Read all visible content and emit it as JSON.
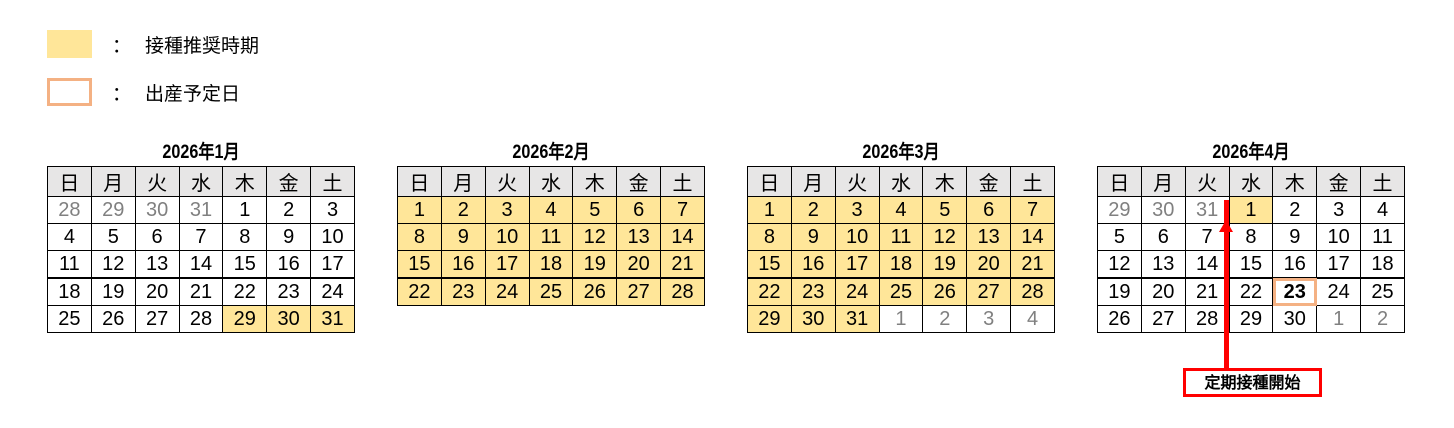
{
  "colors": {
    "recommended": "#ffe699",
    "due_date_border": "#f4b183",
    "annotation": "#ff0000"
  },
  "legend": [
    {
      "separator": "：",
      "label": "接種推奨時期"
    },
    {
      "separator": "：",
      "label": "出産予定日"
    }
  ],
  "weekdays": [
    "日",
    "月",
    "火",
    "水",
    "木",
    "金",
    "土"
  ],
  "months": [
    {
      "title": "2026年1月",
      "days": [
        28,
        29,
        30,
        31,
        1,
        2,
        3,
        4,
        5,
        6,
        7,
        8,
        9,
        10,
        11,
        12,
        13,
        14,
        15,
        16,
        17,
        18,
        19,
        20,
        21,
        22,
        23,
        24,
        25,
        26,
        27,
        28,
        29,
        30,
        31
      ],
      "muted": [
        0,
        1,
        2,
        3
      ],
      "highlight": [
        32,
        33,
        34
      ],
      "due": []
    },
    {
      "title": "2026年2月",
      "days": [
        1,
        2,
        3,
        4,
        5,
        6,
        7,
        8,
        9,
        10,
        11,
        12,
        13,
        14,
        15,
        16,
        17,
        18,
        19,
        20,
        21,
        22,
        23,
        24,
        25,
        26,
        27,
        28
      ],
      "muted": [],
      "highlight": [
        0,
        1,
        2,
        3,
        4,
        5,
        6,
        7,
        8,
        9,
        10,
        11,
        12,
        13,
        14,
        15,
        16,
        17,
        18,
        19,
        20,
        21,
        22,
        23,
        24,
        25,
        26,
        27
      ],
      "due": []
    },
    {
      "title": "2026年3月",
      "days": [
        1,
        2,
        3,
        4,
        5,
        6,
        7,
        8,
        9,
        10,
        11,
        12,
        13,
        14,
        15,
        16,
        17,
        18,
        19,
        20,
        21,
        22,
        23,
        24,
        25,
        26,
        27,
        28,
        29,
        30,
        31,
        1,
        2,
        3,
        4
      ],
      "muted": [
        31,
        32,
        33,
        34
      ],
      "highlight": [
        0,
        1,
        2,
        3,
        4,
        5,
        6,
        7,
        8,
        9,
        10,
        11,
        12,
        13,
        14,
        15,
        16,
        17,
        18,
        19,
        20,
        21,
        22,
        23,
        24,
        25,
        26,
        27,
        28,
        29,
        30
      ],
      "due": []
    },
    {
      "title": "2026年4月",
      "days": [
        29,
        30,
        31,
        1,
        2,
        3,
        4,
        5,
        6,
        7,
        8,
        9,
        10,
        11,
        12,
        13,
        14,
        15,
        16,
        17,
        18,
        19,
        20,
        21,
        22,
        23,
        24,
        25,
        26,
        27,
        28,
        29,
        30,
        1,
        2
      ],
      "muted": [
        0,
        1,
        2,
        33,
        34
      ],
      "highlight": [
        3
      ],
      "due": [
        25
      ]
    }
  ],
  "annotation": {
    "label": "定期接種開始"
  }
}
